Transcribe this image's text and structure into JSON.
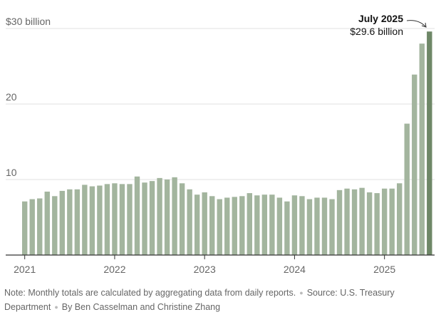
{
  "chart_data": {
    "type": "bar",
    "y_unit_label": "$30 billion",
    "ylim": [
      0,
      30
    ],
    "yticks": [
      {
        "value": 30,
        "label": "$30 billion"
      },
      {
        "value": 20,
        "label": "20"
      },
      {
        "value": 10,
        "label": "10"
      }
    ],
    "xticks": [
      {
        "label": "2021",
        "index": 0
      },
      {
        "label": "2022",
        "index": 12
      },
      {
        "label": "2023",
        "index": 24
      },
      {
        "label": "2024",
        "index": 36
      },
      {
        "label": "2025",
        "index": 48
      }
    ],
    "grid": true,
    "colors": {
      "bar": "#a3b59e",
      "highlight": "#6e8767",
      "grid": "#e2e2e2",
      "axis": "#333333"
    },
    "values": [
      7.1,
      7.4,
      7.5,
      8.4,
      7.8,
      8.5,
      8.7,
      8.7,
      9.3,
      9.1,
      9.2,
      9.4,
      9.5,
      9.4,
      9.4,
      10.4,
      9.6,
      9.8,
      10.2,
      10.0,
      10.3,
      9.5,
      8.7,
      8.0,
      8.3,
      7.8,
      7.4,
      7.6,
      7.7,
      7.8,
      8.2,
      7.9,
      8.0,
      8.0,
      7.6,
      7.1,
      7.9,
      7.8,
      7.4,
      7.6,
      7.6,
      7.4,
      8.6,
      8.8,
      8.7,
      8.9,
      8.3,
      8.2,
      8.8,
      8.8,
      9.5,
      17.4,
      23.9,
      28.0,
      29.6
    ],
    "highlight_index": 54,
    "annotation": {
      "title": "July 2025",
      "value": "$29.6 billion"
    }
  },
  "footnote": {
    "note": "Note: Monthly totals are calculated by aggregating data from daily reports.",
    "source": "Source: U.S. Treasury Department",
    "byline": "By Ben Casselman and Christine Zhang"
  }
}
